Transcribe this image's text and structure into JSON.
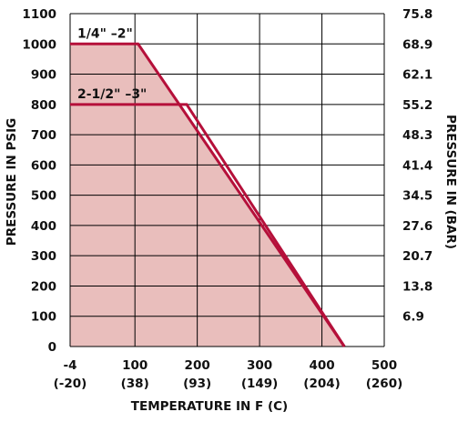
{
  "chart_data": {
    "type": "area",
    "xlabel": "TEMPERATURE IN F (C)",
    "ylabel_left": "PRESSURE IN PSIG",
    "ylabel_right": "PRESSURE IN (BAR)",
    "xlim": [
      -4,
      500
    ],
    "ylim": [
      0,
      1100
    ],
    "grid": true,
    "x_ticks": [
      {
        "x": -4,
        "label": "-4",
        "label_c": "(-20)"
      },
      {
        "x": 100,
        "label": "100",
        "label_c": "(38)"
      },
      {
        "x": 200,
        "label": "200",
        "label_c": "(93)"
      },
      {
        "x": 300,
        "label": "300",
        "label_c": "(149)"
      },
      {
        "x": 400,
        "label": "400",
        "label_c": "(204)"
      },
      {
        "x": 500,
        "label": "500",
        "label_c": "(260)"
      }
    ],
    "y_ticks": [
      {
        "y": 0,
        "label": "0",
        "label_bar": ""
      },
      {
        "y": 100,
        "label": "100",
        "label_bar": "6.9"
      },
      {
        "y": 200,
        "label": "200",
        "label_bar": "13.8"
      },
      {
        "y": 300,
        "label": "300",
        "label_bar": "20.7"
      },
      {
        "y": 400,
        "label": "400",
        "label_bar": "27.6"
      },
      {
        "y": 500,
        "label": "500",
        "label_bar": "34.5"
      },
      {
        "y": 600,
        "label": "600",
        "label_bar": "41.4"
      },
      {
        "y": 700,
        "label": "700",
        "label_bar": "48.3"
      },
      {
        "y": 800,
        "label": "800",
        "label_bar": "55.2"
      },
      {
        "y": 900,
        "label": "900",
        "label_bar": "62.1"
      },
      {
        "y": 1000,
        "label": "1000",
        "label_bar": "68.9"
      },
      {
        "y": 1100,
        "label": "1100",
        "label_bar": "75.8"
      }
    ],
    "series": [
      {
        "name": "1/4\" –2\"",
        "x": [
          -4,
          105,
          436
        ],
        "y": [
          1000,
          1000,
          0
        ]
      },
      {
        "name": "2-1/2\" –3\"",
        "x": [
          -4,
          183,
          436
        ],
        "y": [
          800,
          800,
          0
        ]
      }
    ],
    "colors": {
      "line": "#b5103a",
      "fill": "#e9bebc",
      "grid": "#000000"
    }
  }
}
